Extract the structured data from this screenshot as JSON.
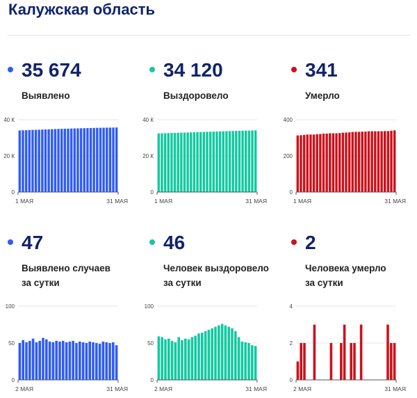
{
  "page": {
    "title": "Калужская область"
  },
  "stats": [
    {
      "value": "35 674",
      "label": [
        "Выявлено"
      ],
      "color": "#2f5cf6"
    },
    {
      "value": "34 120",
      "label": [
        "Выздоровело"
      ],
      "color": "#12c9a1"
    },
    {
      "value": "341",
      "label": [
        "Умерло"
      ],
      "color": "#cc111b"
    },
    {
      "value": "47",
      "label": [
        "Выявлено случаев",
        "за сутки"
      ],
      "color": "#2f5cf6"
    },
    {
      "value": "46",
      "label": [
        "Человек выздоровело",
        "за сутки"
      ],
      "color": "#12c9a1"
    },
    {
      "value": "2",
      "label": [
        "Человека умерло",
        "за сутки"
      ],
      "color": "#cc111b"
    }
  ],
  "chart_data": [
    {
      "type": "bar",
      "series_name": "Выявлено",
      "x_range": [
        "1 МАЯ",
        "31 МАЯ"
      ],
      "x_tick_labels": [
        "1 МАЯ",
        "31 МАЯ"
      ],
      "y_tick_labels": [
        "0",
        "20 К",
        "40 К"
      ],
      "y_ticks": [
        0,
        20000,
        40000
      ],
      "ylim": [
        0,
        40000
      ],
      "color": "#2f5cf6",
      "values": [
        34050,
        34120,
        34190,
        34260,
        34330,
        34400,
        34470,
        34540,
        34610,
        34680,
        34750,
        34820,
        34890,
        34950,
        35000,
        35050,
        35100,
        35150,
        35200,
        35250,
        35300,
        35350,
        35400,
        35440,
        35480,
        35520,
        35560,
        35590,
        35620,
        35650,
        35674
      ]
    },
    {
      "type": "bar",
      "series_name": "Выздоровело",
      "x_range": [
        "1 МАЯ",
        "31 МАЯ"
      ],
      "x_tick_labels": [
        "1 МАЯ",
        "31 МАЯ"
      ],
      "y_tick_labels": [
        "0",
        "20 К",
        "40 К"
      ],
      "y_ticks": [
        0,
        20000,
        40000
      ],
      "ylim": [
        0,
        40000
      ],
      "color": "#12c9a1",
      "values": [
        32400,
        32460,
        32520,
        32580,
        32640,
        32700,
        32760,
        32820,
        32880,
        32940,
        33000,
        33060,
        33120,
        33180,
        33240,
        33300,
        33360,
        33420,
        33480,
        33540,
        33600,
        33650,
        33700,
        33750,
        33800,
        33850,
        33900,
        33950,
        34000,
        34060,
        34120
      ]
    },
    {
      "type": "bar",
      "series_name": "Умерло",
      "x_range": [
        "1 МАЯ",
        "31 МАЯ"
      ],
      "x_tick_labels": [
        "1 МАЯ",
        "31 МАЯ"
      ],
      "y_tick_labels": [
        "0",
        "200",
        "400"
      ],
      "y_ticks": [
        0,
        200,
        400
      ],
      "ylim": [
        0,
        400
      ],
      "color": "#cc111b",
      "values": [
        313,
        314,
        316,
        318,
        318,
        318,
        320,
        321,
        323,
        323,
        325,
        325,
        325,
        326,
        328,
        329,
        330,
        332,
        333,
        333,
        334,
        334,
        336,
        336,
        336,
        336,
        336,
        337,
        337,
        339,
        341
      ]
    },
    {
      "type": "bar",
      "series_name": "Выявлено случаев за сутки",
      "x_range": [
        "2 МАЯ",
        "31 МАЯ"
      ],
      "x_tick_labels": [
        "2 МАЯ",
        "31 МАЯ"
      ],
      "y_tick_labels": [
        "0",
        "50",
        "100"
      ],
      "y_ticks": [
        0,
        50,
        100
      ],
      "ylim": [
        0,
        100
      ],
      "color": "#2f5cf6",
      "values": [
        50,
        54,
        51,
        53,
        56,
        51,
        53,
        57,
        55,
        52,
        51,
        53,
        52,
        53,
        51,
        52,
        53,
        50,
        52,
        51,
        50,
        52,
        51,
        50,
        49,
        52,
        51,
        50,
        51,
        47
      ]
    },
    {
      "type": "bar",
      "series_name": "Человек выздоровело за сутки",
      "x_range": [
        "2 МАЯ",
        "31 МАЯ"
      ],
      "x_tick_labels": [
        "2 МАЯ",
        "31 МАЯ"
      ],
      "y_tick_labels": [
        "0",
        "50",
        "100"
      ],
      "y_ticks": [
        0,
        50,
        100
      ],
      "ylim": [
        0,
        100
      ],
      "color": "#12c9a1",
      "values": [
        59,
        58,
        55,
        56,
        53,
        51,
        58,
        54,
        56,
        55,
        58,
        60,
        63,
        64,
        66,
        68,
        70,
        72,
        74,
        76,
        74,
        72,
        70,
        66,
        58,
        52,
        51,
        50,
        47,
        46
      ]
    },
    {
      "type": "bar",
      "series_name": "Человека умерло за сутки",
      "x_range": [
        "2 МАЯ",
        "31 МАЯ"
      ],
      "x_tick_labels": [
        "2 МАЯ",
        "31 МАЯ"
      ],
      "y_tick_labels": [
        "0",
        "2",
        "4"
      ],
      "y_ticks": [
        0,
        2,
        4
      ],
      "ylim": [
        0,
        4
      ],
      "color": "#cc111b",
      "values": [
        1,
        2,
        2,
        0,
        0,
        3,
        0,
        0,
        0,
        0,
        2,
        0,
        0,
        2,
        3,
        0,
        2,
        2,
        0,
        3,
        0,
        0,
        0,
        0,
        0,
        0,
        0,
        3,
        2,
        2
      ]
    }
  ]
}
